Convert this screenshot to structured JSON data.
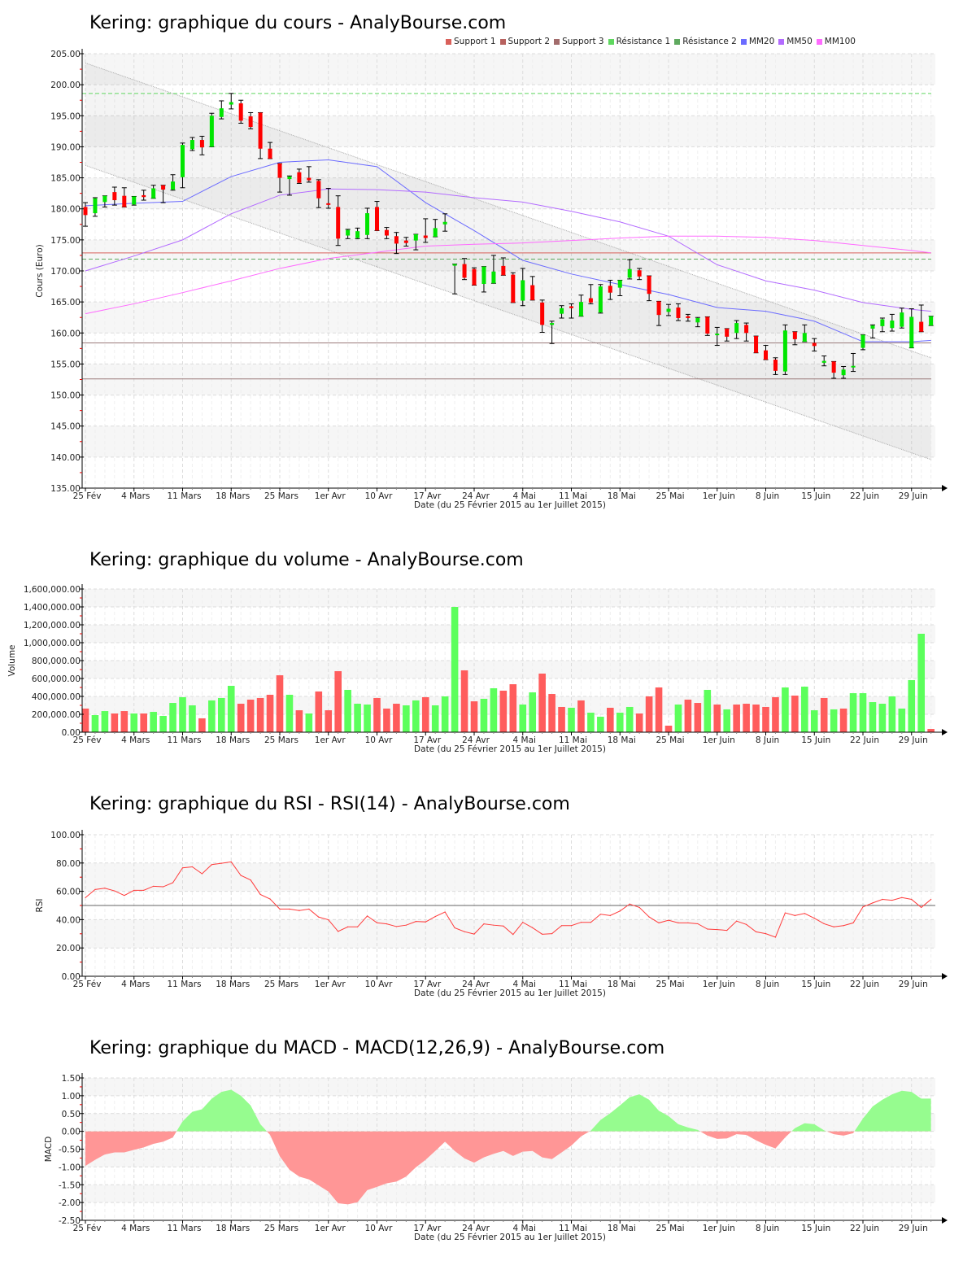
{
  "chart_data": [
    {
      "type": "candlestick",
      "title": "Kering: graphique du cours - AnalyBourse.com",
      "ylabel": "Cours (Euro)",
      "xlabel": "Date (du 25 Février 2015 au 1er Juillet 2015)",
      "ylim": [
        135,
        205
      ],
      "y_ticks": [
        "205.00",
        "200.00",
        "195.00",
        "190.00",
        "185.00",
        "180.00",
        "175.00",
        "170.00",
        "165.00",
        "160.00",
        "155.00",
        "150.00",
        "145.00",
        "140.00",
        "135.00"
      ],
      "x_tick_labels": [
        "25 Fév",
        "4 Mars",
        "11 Mars",
        "18 Mars",
        "25 Mars",
        "1er Avr",
        "10 Avr",
        "17 Avr",
        "24 Avr",
        "4 Mai",
        "11 Mai",
        "18 Mai",
        "25 Mai",
        "1er Juin",
        "8 Juin",
        "15 Juin",
        "22 Juin",
        "29 Juin"
      ],
      "x_tick_every_n_sessions": 5,
      "legend_placement": "top-right",
      "legend": [
        {
          "label": "Support 1",
          "color": "#d9605a"
        },
        {
          "label": "Support 2",
          "color": "#b8625f"
        },
        {
          "label": "Support 3",
          "color": "#a26c6c"
        },
        {
          "label": "Résistance 1",
          "color": "#5fd85f"
        },
        {
          "label": "Résistance 2",
          "color": "#5fa95f"
        },
        {
          "label": "MM20",
          "color": "#6b6bff"
        },
        {
          "label": "MM50",
          "color": "#b36bff"
        },
        {
          "label": "MM100",
          "color": "#ff6bff"
        }
      ],
      "levels": [
        {
          "name": "Résistance 1",
          "value": 198.6,
          "color": "#5fd85f",
          "dashed": true
        },
        {
          "name": "Support 1",
          "value": 172.9,
          "color": "#d9605a",
          "dashed": false
        },
        {
          "name": "Résistance 2",
          "value": 171.9,
          "color": "#5fa95f",
          "dashed": true
        },
        {
          "name": "Support 2",
          "value": 158.4,
          "color": "#9a7a7a",
          "dashed": false
        },
        {
          "name": "Support 3",
          "value": 152.6,
          "color": "#9a7a7a",
          "dashed": false
        }
      ],
      "trend_channel": {
        "upper": [
          203.5,
          156.0
        ],
        "lower": [
          187.0,
          139.6
        ]
      },
      "moving_averages": [
        {
          "name": "MM20",
          "color": "#6b6bff",
          "session_index": [
            0,
            5,
            10,
            15,
            20,
            25,
            30,
            35,
            40,
            45,
            50,
            55,
            60,
            65,
            70,
            75,
            80,
            85,
            87
          ],
          "values": [
            180.5,
            180.9,
            181.2,
            185.2,
            187.5,
            187.9,
            186.8,
            181.0,
            176.5,
            171.7,
            169.5,
            167.8,
            166.2,
            164.1,
            163.5,
            161.9,
            158.6,
            158.6,
            158.8
          ]
        },
        {
          "name": "MM50",
          "color": "#b36bff",
          "session_index": [
            0,
            5,
            10,
            15,
            20,
            25,
            30,
            35,
            40,
            45,
            50,
            55,
            60,
            65,
            70,
            75,
            80,
            85,
            87
          ],
          "values": [
            170.0,
            172.4,
            175.0,
            179.2,
            182.2,
            183.2,
            183.1,
            182.7,
            181.8,
            181.1,
            179.6,
            177.9,
            175.6,
            171.0,
            168.4,
            166.9,
            164.9,
            163.8,
            163.5
          ]
        },
        {
          "name": "MM100",
          "color": "#ff6bff",
          "session_index": [
            0,
            5,
            10,
            15,
            20,
            25,
            30,
            35,
            40,
            45,
            50,
            55,
            60,
            65,
            70,
            75,
            80,
            85,
            87
          ],
          "values": [
            163.1,
            164.7,
            166.5,
            168.4,
            170.4,
            172.0,
            173.0,
            174.0,
            174.3,
            174.5,
            174.9,
            175.3,
            175.6,
            175.6,
            175.4,
            174.9,
            174.1,
            173.3,
            172.9
          ]
        }
      ],
      "ohlc_columns": [
        "open",
        "high",
        "low",
        "close"
      ],
      "ohlc": [
        [
          180.3,
          181.0,
          177.2,
          179.0
        ],
        [
          179.3,
          181.8,
          178.8,
          181.7
        ],
        [
          181.1,
          182.1,
          180.3,
          182.1
        ],
        [
          182.7,
          183.5,
          180.6,
          181.4
        ],
        [
          182.1,
          183.4,
          180.3,
          180.3
        ],
        [
          180.7,
          182.0,
          180.6,
          182.0
        ],
        [
          182.2,
          183.0,
          181.4,
          181.9
        ],
        [
          181.7,
          183.8,
          181.7,
          183.3
        ],
        [
          183.8,
          183.8,
          181.0,
          183.1
        ],
        [
          183.1,
          185.5,
          183.0,
          184.4
        ],
        [
          185.1,
          190.6,
          183.4,
          190.3
        ],
        [
          189.6,
          191.5,
          189.4,
          191.1
        ],
        [
          191.1,
          191.7,
          188.7,
          189.9
        ],
        [
          190.0,
          195.4,
          190.0,
          195.0
        ],
        [
          194.8,
          197.4,
          194.5,
          196.2
        ],
        [
          196.8,
          198.6,
          196.1,
          197.2
        ],
        [
          197.0,
          197.5,
          193.8,
          194.2
        ],
        [
          194.9,
          195.5,
          192.9,
          193.2
        ],
        [
          195.5,
          195.5,
          188.1,
          189.7
        ],
        [
          189.7,
          190.7,
          188.1,
          188.1
        ],
        [
          187.3,
          187.3,
          182.7,
          185.0
        ],
        [
          184.8,
          185.3,
          182.2,
          185.2
        ],
        [
          185.9,
          186.4,
          184.1,
          184.2
        ],
        [
          185.0,
          186.8,
          184.3,
          184.6
        ],
        [
          184.5,
          184.7,
          180.2,
          181.7
        ],
        [
          180.9,
          183.3,
          180.1,
          180.7
        ],
        [
          180.3,
          182.1,
          174.1,
          175.2
        ],
        [
          175.7,
          176.7,
          175.2,
          176.6
        ],
        [
          175.3,
          176.9,
          175.2,
          176.4
        ],
        [
          175.8,
          180.1,
          175.2,
          179.3
        ],
        [
          180.3,
          181.2,
          176.5,
          176.5
        ],
        [
          176.6,
          177.0,
          175.2,
          175.7
        ],
        [
          175.6,
          176.2,
          172.8,
          174.4
        ],
        [
          174.9,
          175.4,
          174.0,
          174.5
        ],
        [
          174.9,
          175.9,
          173.4,
          175.9
        ],
        [
          175.7,
          178.4,
          174.6,
          175.3
        ],
        [
          175.5,
          178.3,
          175.5,
          176.9
        ],
        [
          177.5,
          179.2,
          176.4,
          177.9
        ],
        [
          170.9,
          171.1,
          166.3,
          171.1
        ],
        [
          171.1,
          172.0,
          168.6,
          168.9
        ],
        [
          170.3,
          170.5,
          167.7,
          167.7
        ],
        [
          167.9,
          170.7,
          166.6,
          170.7
        ],
        [
          168.0,
          172.5,
          168.0,
          169.9
        ],
        [
          170.8,
          172.1,
          169.3,
          169.3
        ],
        [
          169.4,
          169.7,
          164.9,
          164.9
        ],
        [
          165.2,
          170.4,
          164.4,
          168.5
        ],
        [
          167.7,
          169.1,
          165.3,
          165.3
        ],
        [
          164.9,
          165.3,
          160.1,
          161.3
        ],
        [
          161.3,
          161.9,
          158.3,
          161.6
        ],
        [
          163.1,
          164.4,
          162.4,
          164.0
        ],
        [
          164.3,
          164.7,
          162.4,
          164.0
        ],
        [
          162.7,
          166.1,
          162.7,
          165.0
        ],
        [
          165.6,
          167.8,
          164.7,
          164.9
        ],
        [
          163.3,
          167.8,
          163.2,
          167.5
        ],
        [
          167.6,
          168.5,
          165.4,
          166.5
        ],
        [
          167.3,
          168.5,
          166.0,
          168.5
        ],
        [
          168.9,
          171.8,
          168.7,
          170.3
        ],
        [
          170.1,
          170.4,
          168.6,
          169.1
        ],
        [
          169.2,
          169.2,
          165.2,
          166.3
        ],
        [
          165.1,
          165.1,
          161.2,
          162.9
        ],
        [
          163.4,
          164.6,
          162.8,
          163.9
        ],
        [
          164.1,
          164.7,
          162.0,
          162.4
        ],
        [
          162.7,
          163.0,
          161.9,
          162.4
        ],
        [
          161.7,
          162.5,
          161.0,
          162.4
        ],
        [
          162.6,
          162.6,
          159.6,
          159.9
        ],
        [
          159.7,
          160.9,
          158.0,
          159.9
        ],
        [
          160.7,
          160.7,
          158.7,
          159.4
        ],
        [
          160.0,
          162.0,
          159.1,
          161.6
        ],
        [
          161.3,
          161.6,
          158.7,
          160.0
        ],
        [
          159.5,
          159.5,
          156.8,
          156.8
        ],
        [
          157.2,
          158.0,
          155.7,
          155.7
        ],
        [
          155.7,
          156.0,
          153.3,
          153.9
        ],
        [
          153.8,
          161.3,
          153.3,
          160.4
        ],
        [
          160.2,
          160.2,
          158.1,
          159.0
        ],
        [
          158.6,
          161.3,
          158.6,
          160.0
        ],
        [
          158.4,
          159.1,
          157.1,
          157.9
        ],
        [
          155.2,
          156.3,
          154.7,
          155.5
        ],
        [
          155.4,
          155.4,
          152.7,
          153.6
        ],
        [
          153.2,
          154.6,
          152.7,
          154.1
        ],
        [
          154.5,
          156.7,
          153.8,
          154.7
        ],
        [
          157.6,
          159.7,
          157.3,
          159.7
        ],
        [
          160.7,
          161.3,
          159.2,
          161.2
        ],
        [
          161.1,
          162.4,
          160.2,
          162.2
        ],
        [
          160.8,
          163.0,
          160.3,
          162.0
        ],
        [
          161.0,
          164.0,
          160.8,
          163.3
        ],
        [
          157.6,
          163.9,
          157.6,
          162.6
        ],
        [
          161.8,
          164.5,
          160.2,
          160.2
        ],
        [
          161.2,
          162.7,
          161.2,
          162.7
        ]
      ],
      "colors": {
        "up": "#00e600",
        "down": "#ff0000"
      }
    },
    {
      "type": "bar",
      "title": "Kering: graphique du volume - AnalyBourse.com",
      "ylabel": "Volume",
      "xlabel": "Date (du 25 Février 2015 au 1er Juillet 2015)",
      "ylim": [
        0,
        1600000
      ],
      "y_ticks": [
        "1,600,000.00",
        "1,400,000.00",
        "1,200,000.00",
        "1,000,000.00",
        "800,000.00",
        "600,000.00",
        "400,000.00",
        "200,000.00",
        "0.00"
      ],
      "values": [
        264000,
        191000,
        236000,
        209000,
        236000,
        209000,
        209000,
        227000,
        182000,
        327000,
        391000,
        300000,
        155000,
        355000,
        382000,
        518000,
        318000,
        364000,
        382000,
        418000,
        636000,
        418000,
        245000,
        209000,
        455000,
        245000,
        682000,
        473000,
        318000,
        309000,
        382000,
        264000,
        318000,
        300000,
        355000,
        391000,
        300000,
        400000,
        1400000,
        691000,
        345000,
        373000,
        491000,
        464000,
        536000,
        309000,
        445000,
        655000,
        427000,
        282000,
        273000,
        355000,
        218000,
        173000,
        273000,
        218000,
        282000,
        209000,
        400000,
        500000,
        73000,
        309000,
        364000,
        327000,
        473000,
        309000,
        255000,
        309000,
        318000,
        309000,
        282000,
        391000,
        500000,
        409000,
        509000,
        245000,
        382000,
        255000,
        264000,
        436000,
        436000,
        336000,
        318000,
        400000,
        264000,
        582000,
        1100000,
        36000
      ],
      "direction": "ruurruruuuuuruuurrrrrururrruuurrruurguurruurruurrruruuruurrrrurrururrrrruruururuuuuuuuuru",
      "colors": {
        "up": "#5cff5c",
        "down": "#ff5c5c"
      }
    },
    {
      "type": "line",
      "title": "Kering: graphique du RSI - RSI(14) - AnalyBourse.com",
      "ylabel": "RSI",
      "xlabel": "Date (du 25 Février 2015 au 1er Juillet 2015)",
      "ylim": [
        0,
        100
      ],
      "reference_line": 50,
      "y_ticks": [
        "100.00",
        "80.00",
        "60.00",
        "40.00",
        "20.00",
        "0.00"
      ],
      "values": [
        55.5,
        61.3,
        62.2,
        60.3,
        57.1,
        60.7,
        60.7,
        63.6,
        63.2,
        66.1,
        76.6,
        77.3,
        72.4,
        78.9,
        79.8,
        80.8,
        71.2,
        68.0,
        57.8,
        54.6,
        47.5,
        47.5,
        46.4,
        47.5,
        41.8,
        39.9,
        31.7,
        34.9,
        34.9,
        42.6,
        37.8,
        37.0,
        35.1,
        36.1,
        38.7,
        38.4,
        42.2,
        45.4,
        34.2,
        31.5,
        29.8,
        37.0,
        36.1,
        35.5,
        29.5,
        38.1,
        34.3,
        29.7,
        30.1,
        35.8,
        35.8,
        38.1,
        38.1,
        43.8,
        42.9,
        46.1,
        51.0,
        48.6,
        41.9,
        37.7,
        39.6,
        37.7,
        37.7,
        37.1,
        33.3,
        33.0,
        32.4,
        39.0,
        36.6,
        31.4,
        30.1,
        27.6,
        44.8,
        42.9,
        44.4,
        41.0,
        37.1,
        34.9,
        35.8,
        37.7,
        49.0,
        51.8,
        54.3,
        53.7,
        55.6,
        54.3,
        48.6,
        54.3
      ],
      "colors": {
        "line": "#ff3c3c"
      }
    },
    {
      "type": "area",
      "title": "Kering: graphique du MACD - MACD(12,26,9) - AnalyBourse.com",
      "ylabel": "MACD",
      "xlabel": "Date (du 25 Février 2015 au 1er Juillet 2015)",
      "ylim": [
        -2.5,
        1.5
      ],
      "y_ticks": [
        "1.50",
        "1.00",
        "0.50",
        "0.00",
        "-0.50",
        "-1.00",
        "-1.50",
        "-2.00",
        "-2.50"
      ],
      "values": [
        -0.97,
        -0.8,
        -0.65,
        -0.59,
        -0.59,
        -0.52,
        -0.45,
        -0.35,
        -0.29,
        -0.17,
        0.28,
        0.55,
        0.62,
        0.92,
        1.11,
        1.17,
        1.0,
        0.73,
        0.2,
        -0.1,
        -0.7,
        -1.08,
        -1.27,
        -1.35,
        -1.52,
        -1.69,
        -2.02,
        -2.05,
        -1.99,
        -1.65,
        -1.56,
        -1.46,
        -1.41,
        -1.27,
        -1.01,
        -0.8,
        -0.55,
        -0.29,
        -0.55,
        -0.76,
        -0.88,
        -0.73,
        -0.63,
        -0.55,
        -0.69,
        -0.57,
        -0.55,
        -0.73,
        -0.78,
        -0.59,
        -0.4,
        -0.14,
        0.02,
        0.32,
        0.51,
        0.73,
        0.96,
        1.04,
        0.89,
        0.58,
        0.43,
        0.2,
        0.11,
        0.04,
        -0.12,
        -0.21,
        -0.2,
        -0.08,
        -0.1,
        -0.25,
        -0.38,
        -0.48,
        -0.17,
        0.09,
        0.23,
        0.2,
        0.03,
        -0.08,
        -0.12,
        -0.05,
        0.36,
        0.7,
        0.89,
        1.04,
        1.14,
        1.11,
        0.92,
        0.92
      ],
      "colors": {
        "positive": "#96fc8f",
        "negative": "#ff9696"
      }
    }
  ]
}
